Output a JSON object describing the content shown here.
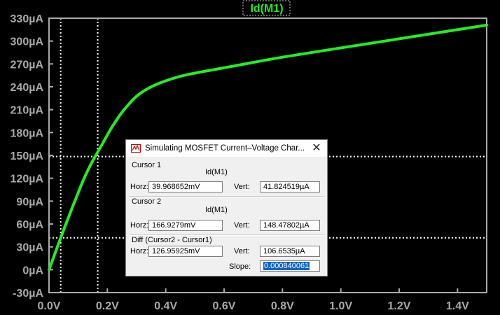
{
  "window": {
    "trace_label": "Id(M1)"
  },
  "chart_data": {
    "type": "line",
    "series": [
      {
        "name": "Id(M1)",
        "color": "#22ee22",
        "x": [
          0.0,
          0.02,
          0.04,
          0.06,
          0.08,
          0.1,
          0.12,
          0.14,
          0.16,
          0.18,
          0.2,
          0.22,
          0.25,
          0.28,
          0.3,
          0.33,
          0.36,
          0.4,
          0.45,
          0.5,
          0.6,
          0.7,
          0.8,
          0.9,
          1.0,
          1.1,
          1.2,
          1.3,
          1.4,
          1.5
        ],
        "y": [
          0,
          21,
          42,
          62,
          82,
          101,
          120,
          136,
          150,
          163,
          177,
          190,
          207,
          220,
          228,
          236,
          242,
          248,
          254,
          258,
          265,
          272,
          279,
          285,
          291,
          297,
          303,
          309,
          315,
          321
        ]
      }
    ],
    "xlim": [
      0.0,
      1.5
    ],
    "ylim": [
      -30,
      330
    ],
    "xticks": [
      "0.0V",
      "0.2V",
      "0.4V",
      "0.6V",
      "0.8V",
      "1.0V",
      "1.2V",
      "1.4V"
    ],
    "yticks": [
      "-30µA",
      "0µA",
      "30µA",
      "60µA",
      "90µA",
      "120µA",
      "150µA",
      "180µA",
      "210µA",
      "240µA",
      "270µA",
      "300µA",
      "330µA"
    ],
    "cursors": [
      {
        "x": 0.03997,
        "y": 41.82
      },
      {
        "x": 0.16693,
        "y": 148.48
      }
    ],
    "grid": false,
    "background": "#000000",
    "axis_color": "#aaaaaa"
  },
  "dialog": {
    "title": "Simulating MOSFET Current–Voltage Char...",
    "close_glyph": "✕",
    "cursor1": {
      "label": "Cursor 1",
      "trace": "Id(M1)",
      "horz_label": "Horz:",
      "horz_value": "39.968652mV",
      "vert_label": "Vert:",
      "vert_value": "41.824519µA"
    },
    "cursor2": {
      "label": "Cursor 2",
      "trace": "Id(M1)",
      "horz_label": "Horz:",
      "horz_value": "166.9279mV",
      "vert_label": "Vert:",
      "vert_value": "148.47802µA"
    },
    "diff": {
      "label": "Diff (Cursor2 - Cursor1)",
      "horz_label": "Horz:",
      "horz_value": "126.95925mV",
      "vert_label": "Vert:",
      "vert_value": "106.6535µA",
      "slope_label": "Slope:",
      "slope_value": "0.000840061"
    }
  }
}
